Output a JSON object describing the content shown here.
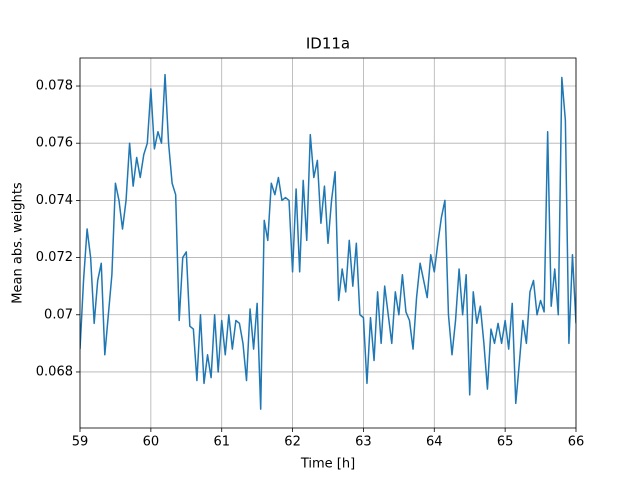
{
  "chart_data": {
    "type": "line",
    "title": "ID11a",
    "x_label": "Time [h]",
    "y_label": "Mean abs. weights",
    "color": "#1f77b4",
    "grid": true,
    "xlim": [
      59,
      66
    ],
    "xticks": [
      59,
      60,
      61,
      62,
      63,
      64,
      65,
      66
    ],
    "ylim": [
      0.06604,
      0.07898
    ],
    "yticks": [
      0.068,
      0.07,
      0.072,
      0.074,
      0.076,
      0.078
    ],
    "x": [
      59.0,
      59.05,
      59.1,
      59.15,
      59.2,
      59.25,
      59.3,
      59.35,
      59.4,
      59.45,
      59.5,
      59.55,
      59.6,
      59.65,
      59.7,
      59.75,
      59.8,
      59.85,
      59.9,
      59.95,
      60.0,
      60.05,
      60.1,
      60.15,
      60.2,
      60.25,
      60.3,
      60.35,
      60.4,
      60.45,
      60.5,
      60.55,
      60.6,
      60.65,
      60.7,
      60.75,
      60.8,
      60.85,
      60.9,
      60.95,
      61.0,
      61.05,
      61.1,
      61.15,
      61.2,
      61.25,
      61.3,
      61.35,
      61.4,
      61.45,
      61.5,
      61.55,
      61.6,
      61.65,
      61.7,
      61.75,
      61.8,
      61.85,
      61.9,
      61.95,
      62.0,
      62.05,
      62.1,
      62.15,
      62.2,
      62.25,
      62.3,
      62.35,
      62.4,
      62.45,
      62.5,
      62.55,
      62.6,
      62.65,
      62.7,
      62.75,
      62.8,
      62.85,
      62.9,
      62.95,
      63.0,
      63.05,
      63.1,
      63.15,
      63.2,
      63.25,
      63.3,
      63.35,
      63.4,
      63.45,
      63.5,
      63.55,
      63.6,
      63.65,
      63.7,
      63.75,
      63.8,
      63.85,
      63.9,
      63.95,
      64.0,
      64.05,
      64.1,
      64.15,
      64.2,
      64.25,
      64.3,
      64.35,
      64.4,
      64.45,
      64.5,
      64.55,
      64.6,
      64.65,
      64.7,
      64.75,
      64.8,
      64.85,
      64.9,
      64.95,
      65.0,
      65.05,
      65.1,
      65.15,
      65.2,
      65.25,
      65.3,
      65.35,
      65.4,
      65.45,
      65.5,
      65.55,
      65.6,
      65.65,
      65.7,
      65.75,
      65.8,
      65.85,
      65.9,
      65.95,
      66.0
    ],
    "values": [
      0.0688,
      0.0712,
      0.073,
      0.072,
      0.0697,
      0.0712,
      0.0718,
      0.0686,
      0.07,
      0.0714,
      0.0746,
      0.074,
      0.073,
      0.074,
      0.076,
      0.0745,
      0.0755,
      0.0748,
      0.0756,
      0.076,
      0.0779,
      0.0758,
      0.0764,
      0.076,
      0.0784,
      0.076,
      0.0746,
      0.0742,
      0.0698,
      0.072,
      0.0722,
      0.0696,
      0.0695,
      0.0677,
      0.07,
      0.0676,
      0.0686,
      0.0678,
      0.07,
      0.068,
      0.0698,
      0.0686,
      0.07,
      0.0688,
      0.0698,
      0.0697,
      0.069,
      0.0677,
      0.0702,
      0.0688,
      0.0704,
      0.0667,
      0.0733,
      0.0726,
      0.0746,
      0.0742,
      0.0748,
      0.074,
      0.0741,
      0.074,
      0.0715,
      0.0744,
      0.0715,
      0.0747,
      0.0726,
      0.0763,
      0.0748,
      0.0754,
      0.0732,
      0.0745,
      0.0725,
      0.074,
      0.075,
      0.0705,
      0.0716,
      0.0708,
      0.0726,
      0.071,
      0.0725,
      0.07,
      0.0699,
      0.0676,
      0.0699,
      0.0684,
      0.0708,
      0.069,
      0.071,
      0.07,
      0.069,
      0.0708,
      0.07,
      0.0714,
      0.0701,
      0.0698,
      0.0688,
      0.0706,
      0.0718,
      0.0712,
      0.0706,
      0.0721,
      0.0715,
      0.0725,
      0.0734,
      0.074,
      0.07,
      0.0686,
      0.0698,
      0.0716,
      0.07,
      0.0714,
      0.0672,
      0.0708,
      0.0697,
      0.0703,
      0.069,
      0.0674,
      0.0695,
      0.069,
      0.0697,
      0.069,
      0.0698,
      0.0688,
      0.0704,
      0.0669,
      0.0683,
      0.0698,
      0.069,
      0.0708,
      0.0712,
      0.07,
      0.0705,
      0.0701,
      0.0764,
      0.0703,
      0.0716,
      0.07,
      0.0783,
      0.0768,
      0.069,
      0.0721,
      0.0697
    ]
  }
}
